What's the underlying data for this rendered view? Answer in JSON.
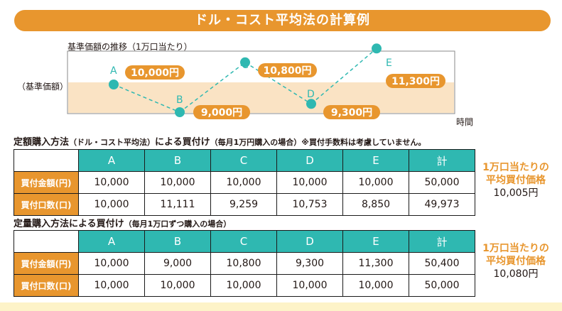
{
  "title": "ドル・コスト平均法の計算例",
  "chart": {
    "caption": "基準価額の推移（1万口当たり）",
    "side_label": "（基準価額）",
    "x_label": "時間",
    "colors": {
      "band": "#fae3c4",
      "line": "#2fb8b1",
      "label_bg": "#e8962e"
    },
    "points": [
      {
        "name": "A",
        "value": "10,000円"
      },
      {
        "name": "B",
        "value": "9,000円"
      },
      {
        "name": "C",
        "value": "10,800円"
      },
      {
        "name": "D",
        "value": "9,300円"
      },
      {
        "name": "E",
        "value": "11,300円"
      }
    ]
  },
  "chart_data": {
    "type": "line",
    "categories": [
      "A",
      "B",
      "C",
      "D",
      "E"
    ],
    "values": [
      10000,
      9000,
      10800,
      9300,
      11300
    ],
    "title": "基準価額の推移（1万口当たり）",
    "xlabel": "時間",
    "ylabel": "（基準価額）"
  },
  "section1": {
    "title": "定額購入方法",
    "title_paren": "（ドル・コスト平均法）",
    "title_tail": "による買付け",
    "note": "（毎月1万円購入の場合）※買付手数料は考慮していません。",
    "headers": [
      "A",
      "B",
      "C",
      "D",
      "E",
      "計"
    ],
    "rows": [
      {
        "label": "買付金額(円)",
        "values": [
          "10,000",
          "10,000",
          "10,000",
          "10,000",
          "10,000",
          "50,000"
        ]
      },
      {
        "label": "買付口数(口)",
        "values": [
          "10,000",
          "11,111",
          "9,259",
          "10,753",
          "8,850",
          "49,973"
        ]
      }
    ],
    "avg_line1": "1万口当たりの",
    "avg_line2": "平均買付価格",
    "avg_value": "10,005円"
  },
  "section2": {
    "title": "定量購入方法による買付け",
    "note": "（毎月1万口ずつ購入の場合）",
    "headers": [
      "A",
      "B",
      "C",
      "D",
      "E",
      "計"
    ],
    "rows": [
      {
        "label": "買付金額(円)",
        "values": [
          "10,000",
          "9,000",
          "10,800",
          "9,300",
          "11,300",
          "50,400"
        ]
      },
      {
        "label": "買付口数(口)",
        "values": [
          "10,000",
          "10,000",
          "10,000",
          "10,000",
          "10,000",
          "50,000"
        ]
      }
    ],
    "avg_line1": "1万口当たりの",
    "avg_line2": "平均買付価格",
    "avg_value": "10,080円"
  }
}
